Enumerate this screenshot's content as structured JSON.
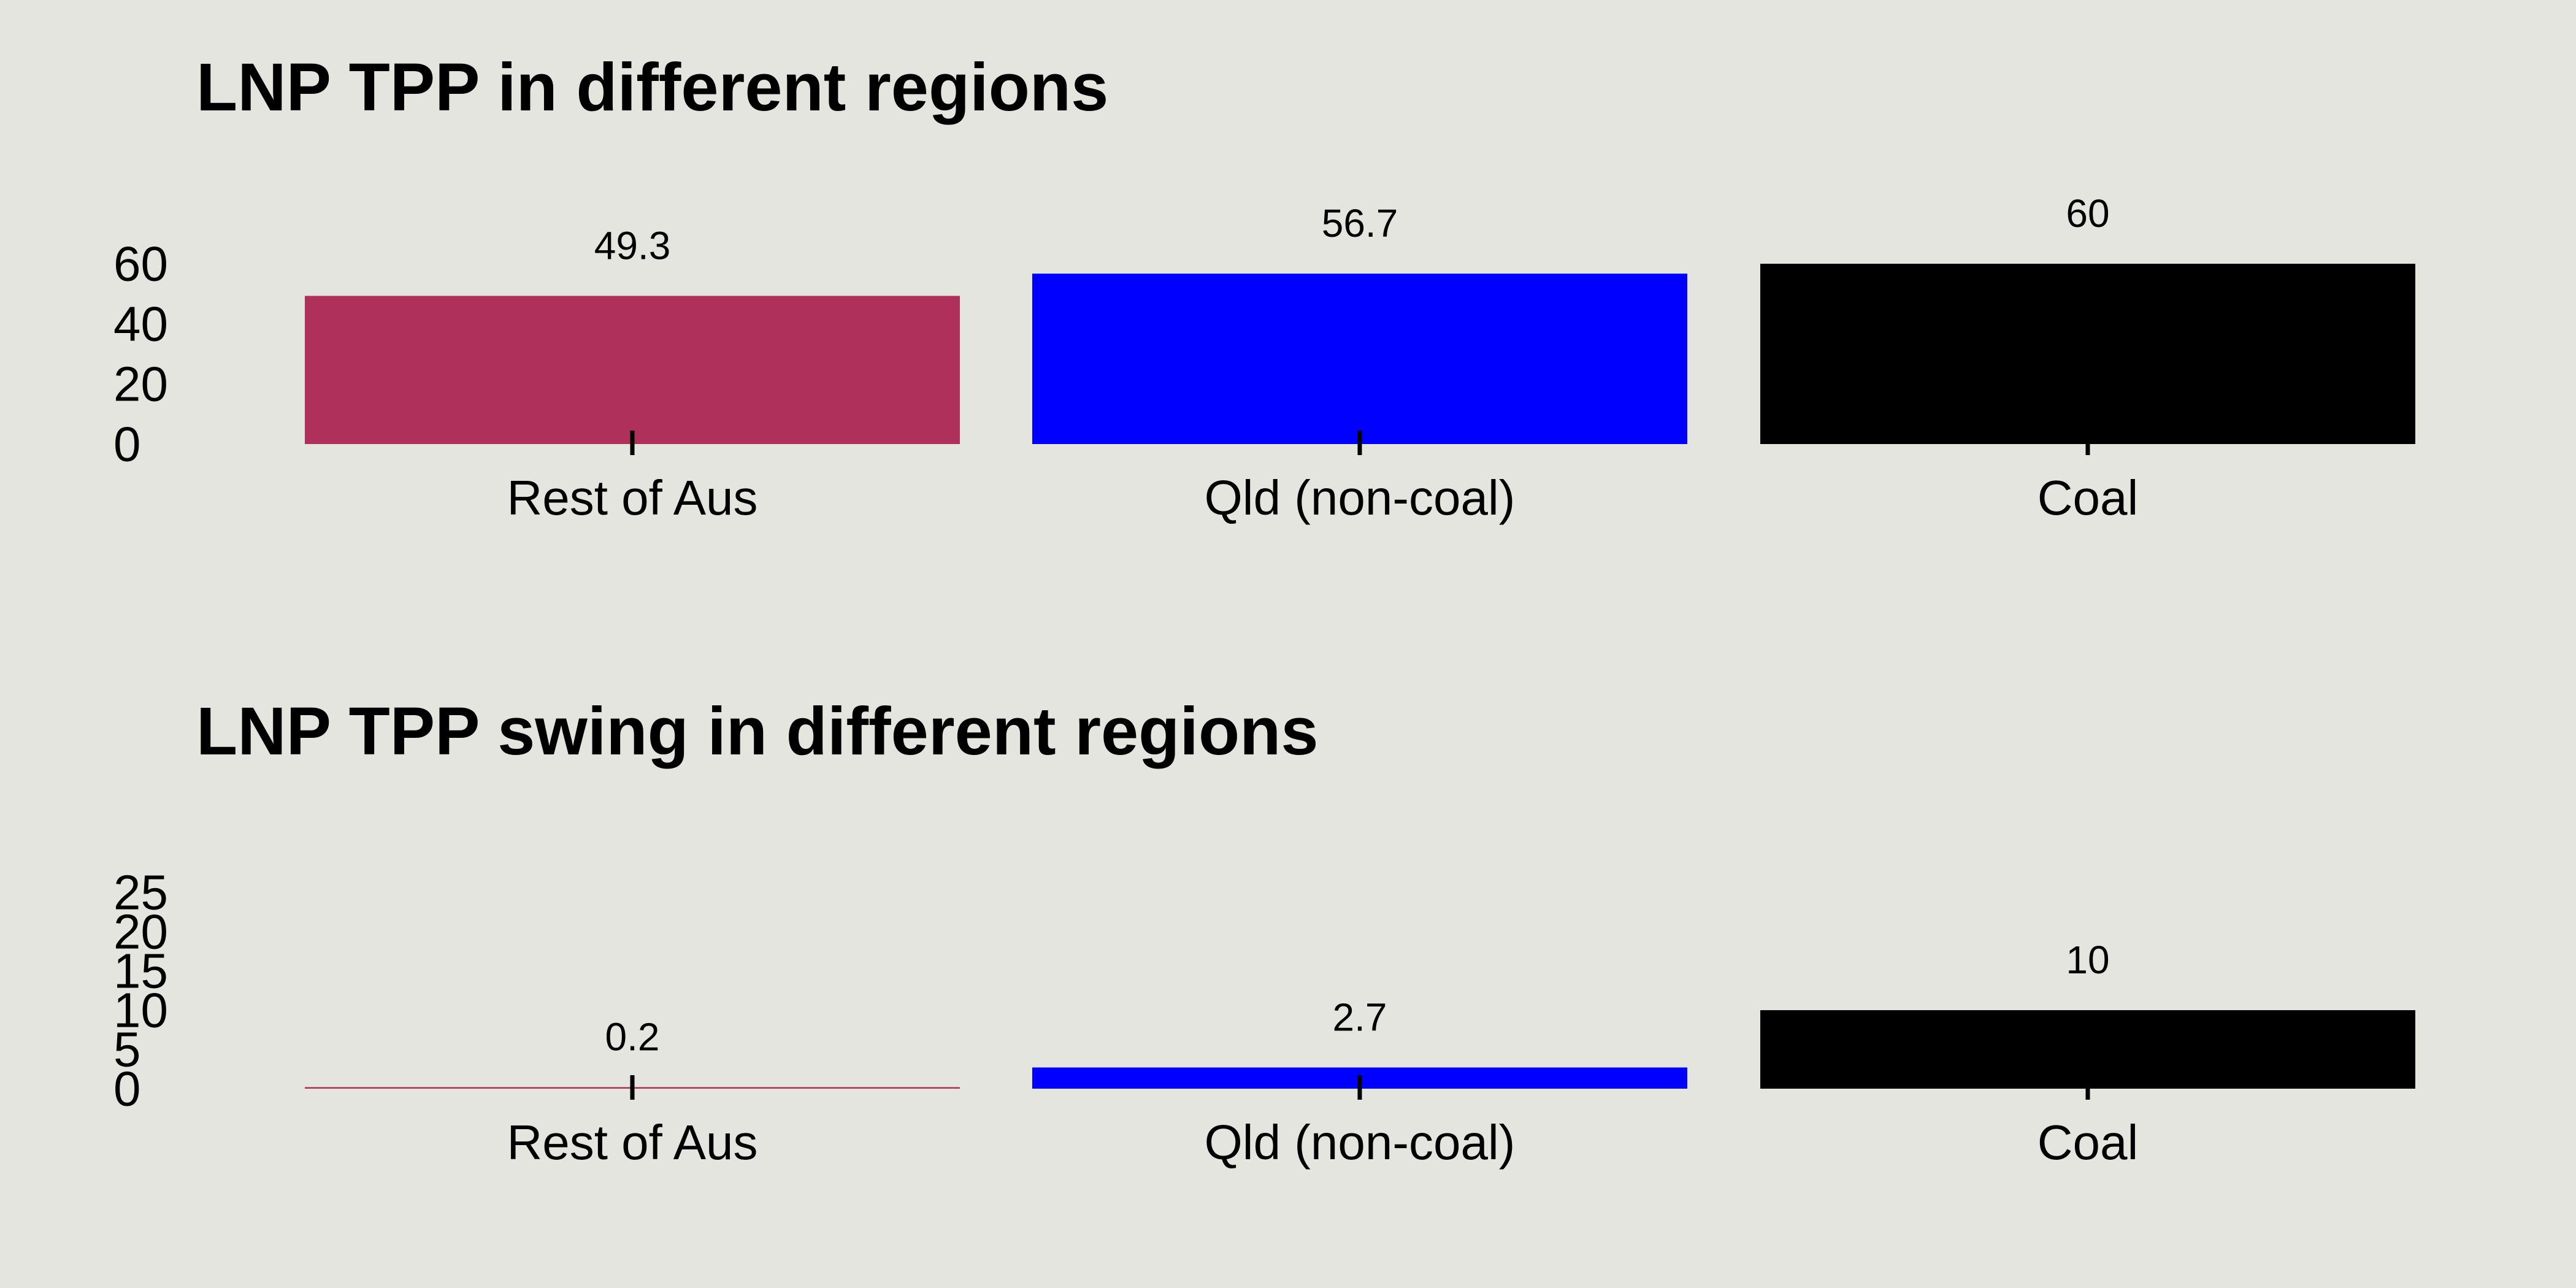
{
  "chart_data": [
    {
      "type": "bar",
      "title": "LNP TPP in different regions",
      "categories": [
        "Rest of Aus",
        "Qld (non-coal)",
        "Coal"
      ],
      "values": [
        49.3,
        56.7,
        60
      ],
      "value_labels": [
        "49.3",
        "56.7",
        "60"
      ],
      "colors": [
        "#b0305c",
        "#0000ff",
        "#000000"
      ],
      "yticks": [
        0,
        20,
        40,
        60
      ],
      "ylim": [
        0,
        60
      ],
      "xlabel": "",
      "ylabel": "",
      "grid": false,
      "legend": "none"
    },
    {
      "type": "bar",
      "title": "LNP TPP swing in different regions",
      "categories": [
        "Rest of Aus",
        "Qld (non-coal)",
        "Coal"
      ],
      "values": [
        0.2,
        2.7,
        10
      ],
      "value_labels": [
        "0.2",
        "2.7",
        "10"
      ],
      "colors": [
        "#b0305c",
        "#0000ff",
        "#000000"
      ],
      "yticks": [
        0,
        5,
        10,
        15,
        20,
        25
      ],
      "ylim": [
        0,
        25
      ],
      "xlabel": "",
      "ylabel": "",
      "grid": false,
      "legend": "none"
    }
  ]
}
